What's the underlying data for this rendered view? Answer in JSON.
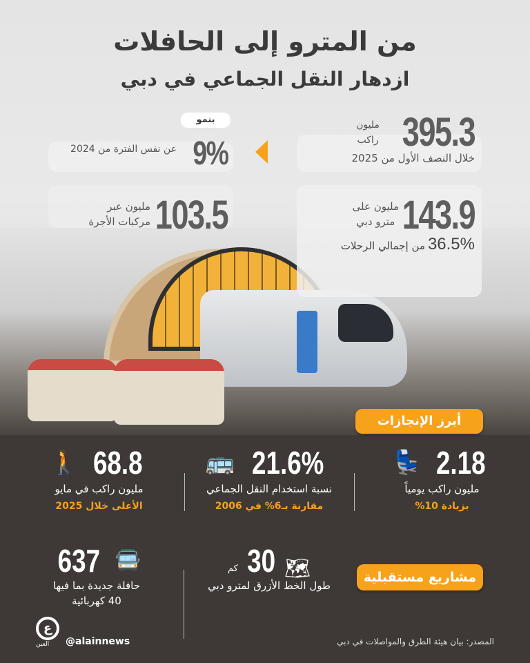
{
  "header": {
    "title": "من المترو إلى الحافلات",
    "subtitle": "ازدهار النقل الجماعي في دبي"
  },
  "stats_top": {
    "total": {
      "value": "395.3",
      "unit_line1": "مليون",
      "unit_line2": "راكب",
      "caption": "خلال النصف الأول من 2025"
    },
    "growth": {
      "badge": "بنمو",
      "value": "9%",
      "caption": "عن نفس الفترة من 2024"
    },
    "metro": {
      "value": "143.9",
      "unit_line1": "مليون على",
      "unit_line2": "مترو دبي",
      "share_value": "36.5%",
      "share_caption": "من إجمالي الرحلات"
    },
    "taxi": {
      "value": "103.5",
      "unit_line1": "مليون عبر",
      "unit_line2": "مركبات الأجرة"
    }
  },
  "achievements": {
    "badge": "أبرز الإنجازات",
    "items": [
      {
        "icon": "seated-passengers-icon",
        "value": "2.18",
        "caption": "مليون راكب يومياً",
        "highlight": "بزيادة 10%"
      },
      {
        "icon": "bus-icon",
        "value": "21.6%",
        "caption": "نسبة استخدام النقل الجماعي",
        "highlight": "مقارنة بـ6% في 2006"
      },
      {
        "icon": "passenger-boarding-icon",
        "value": "68.8",
        "caption": "مليون راكب في مايو",
        "highlight": "الأعلى خلال 2025"
      }
    ]
  },
  "future": {
    "badge": "مشاريع مستقبلية",
    "items": [
      {
        "icon": "route-map-icon",
        "value": "30",
        "unit": "كم",
        "caption": "طول الخط الأزرق لمترو دبي"
      },
      {
        "icon": "electric-bus-icon",
        "value": "637",
        "caption_line1": "حافلة جديدة بما فيها",
        "caption_line2": "40 كهربائية"
      }
    ]
  },
  "footer": {
    "source": "المصدر: بيان هيئة الطرق والمواصلات في دبي",
    "handle": "@alainnews",
    "logo_text": "العين"
  },
  "colors": {
    "accent": "#f7a21b",
    "dark_bg": "#3e3936",
    "text_gray": "#5e5e5e"
  }
}
